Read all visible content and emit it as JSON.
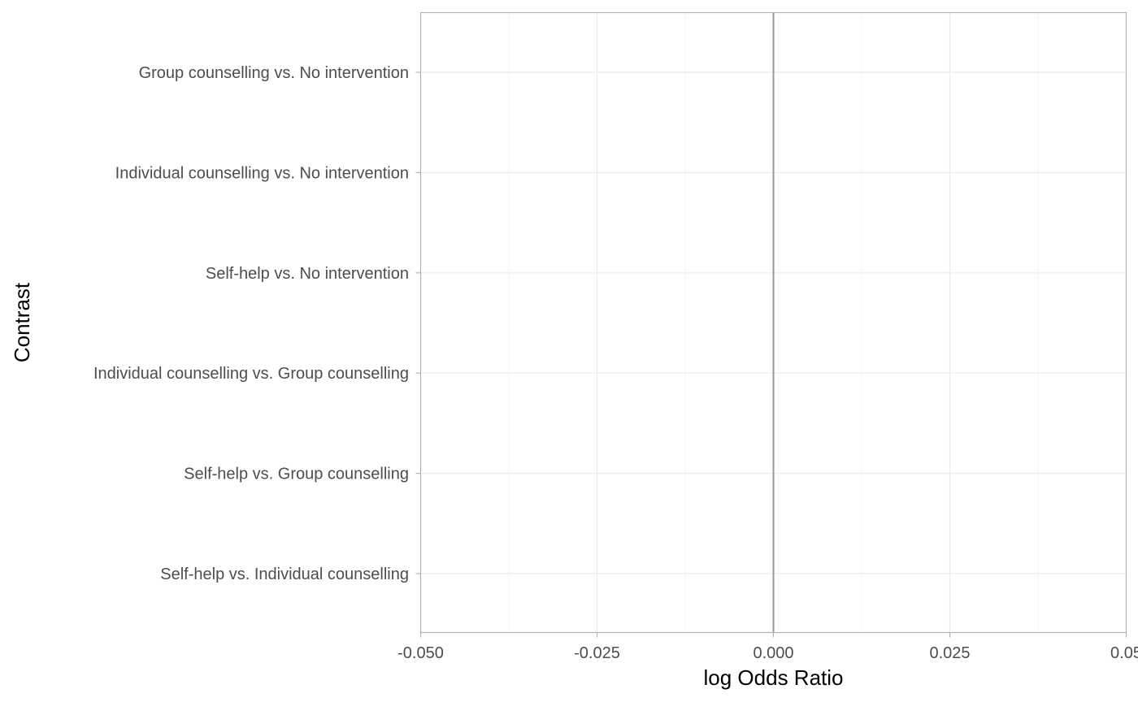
{
  "chart_data": {
    "type": "scatter",
    "title": "",
    "xlabel": "log Odds Ratio",
    "ylabel": "Contrast",
    "xlim": [
      -0.05,
      0.05
    ],
    "x_ticks": [
      -0.05,
      -0.025,
      0.0,
      0.025,
      0.05
    ],
    "x_tick_labels": [
      "-0.050",
      "-0.025",
      "0.000",
      "0.025",
      "0.05"
    ],
    "categories": [
      "Group counselling vs. No intervention",
      "Individual counselling vs. No intervention",
      "Self-help vs. No intervention",
      "Individual counselling vs. Group counselling",
      "Self-help vs. Group counselling",
      "Self-help vs. Individual counselling"
    ],
    "reference_line_x": 0.0,
    "grid": true,
    "points": []
  },
  "colors": {
    "panel_border": "#b3b3b3",
    "grid_major": "#ebebeb",
    "grid_minor": "#f5f5f5",
    "reference_line": "#999999",
    "tick_text": "#4d4d4d",
    "axis_title": "#000000"
  }
}
